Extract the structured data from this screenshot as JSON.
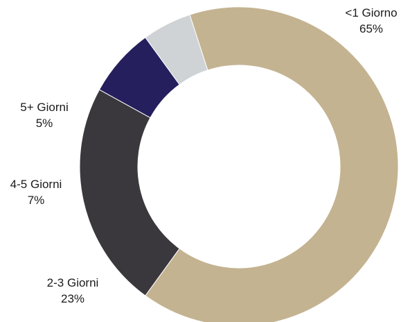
{
  "chart_data": {
    "type": "pie",
    "variant": "donut",
    "title": "",
    "legend": "none",
    "start_angle_deg": -18,
    "direction": "clockwise",
    "slices": [
      {
        "label": "<1 Giorno",
        "value": 65,
        "value_label": "65%",
        "color": "#c4b391"
      },
      {
        "label": "2-3 Giorni",
        "value": 23,
        "value_label": "23%",
        "color": "#3a383d"
      },
      {
        "label": "4-5 Giorni",
        "value": 7,
        "value_label": "7%",
        "color": "#251f5e"
      },
      {
        "label": "5+ Giorni",
        "value": 5,
        "value_label": "5%",
        "color": "#cfd3d6"
      }
    ]
  }
}
